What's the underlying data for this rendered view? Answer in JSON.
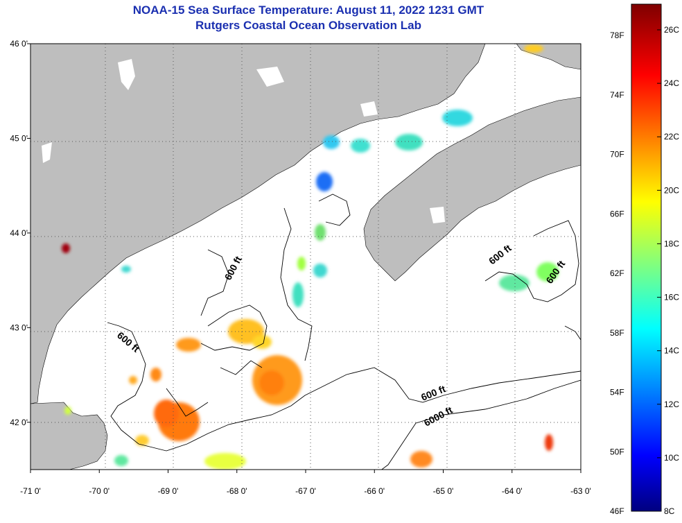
{
  "title_line1": "NOAA-15 Sea Surface Temperature:  August 11, 2022 1231 GMT",
  "title_line2": "Rutgers Coastal Ocean Observation Lab",
  "map": {
    "lon_range": [
      -71,
      -63
    ],
    "lat_range": [
      41.5,
      46
    ],
    "x_ticks": [
      {
        "lon": -71,
        "label": "-71 0'"
      },
      {
        "lon": -70,
        "label": "-70 0'"
      },
      {
        "lon": -69,
        "label": "-69 0'"
      },
      {
        "lon": -68,
        "label": "-68 0'"
      },
      {
        "lon": -67,
        "label": "-67 0'"
      },
      {
        "lon": -66,
        "label": "-66 0'"
      },
      {
        "lon": -65,
        "label": "-65 0'"
      },
      {
        "lon": -64,
        "label": "-64 0'"
      },
      {
        "lon": -63,
        "label": "-63 0'"
      }
    ],
    "y_ticks": [
      {
        "lat": 46,
        "label": "46 0'"
      },
      {
        "lat": 45,
        "label": "45 0'"
      },
      {
        "lat": 44,
        "label": "44 0'"
      },
      {
        "lat": 43,
        "label": "43 0'"
      },
      {
        "lat": 42,
        "label": "42 0'"
      }
    ],
    "contour_labels": [
      "600 ft",
      "600 ft",
      "600 ft",
      "600 ft",
      "600 ft",
      "6000 ft"
    ],
    "land_color": "#bebebe",
    "water_color": "#ffffff"
  },
  "colorbar": {
    "f_labels": [
      "78F",
      "74F",
      "70F",
      "66F",
      "62F",
      "58F",
      "54F",
      "50F",
      "46F"
    ],
    "c_labels": [
      "26C",
      "24C",
      "22C",
      "20C",
      "18C",
      "16C",
      "14C",
      "12C",
      "10C",
      "8C"
    ],
    "c_range": [
      8,
      27
    ]
  }
}
